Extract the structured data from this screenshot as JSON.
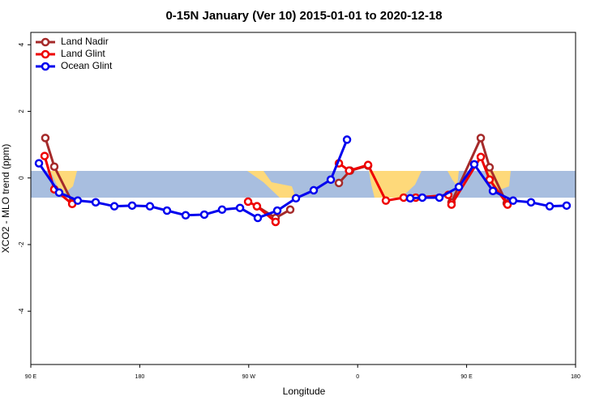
{
  "chart_data": {
    "type": "line",
    "title": "0-15N January (Ver 10)   2015-01-01 to 2020-12-18",
    "xlabel": "Longitude",
    "ylabel": "XCO2 - MLO trend (ppm)",
    "xlim": [
      90,
      540
    ],
    "xticks": [
      {
        "value": 90,
        "label": "90 E"
      },
      {
        "value": 180,
        "label": "180"
      },
      {
        "value": 270,
        "label": "90 W"
      },
      {
        "value": 360,
        "label": "0"
      },
      {
        "value": 450,
        "label": "90 E"
      },
      {
        "value": 540,
        "label": "180"
      }
    ],
    "ylim": [
      -5.6,
      4.37
    ],
    "yticks": [
      -4,
      -2,
      0,
      2,
      4
    ],
    "legend": "top-left",
    "series": [
      {
        "name": "Land Nadir",
        "color": "#a52a2a",
        "x": [
          102,
          109.4,
          124.2,
          200,
          276.8,
          292.2,
          304.3,
          325,
          344.5,
          353.8,
          368.6,
          400,
          437.5,
          461.7,
          469,
          483.1
        ],
        "values": [
          1.2,
          0.34,
          -0.73,
          null,
          -0.85,
          -1.2,
          -0.95,
          null,
          -0.15,
          0.22,
          0.37,
          null,
          -0.73,
          1.2,
          0.32,
          -0.76
        ]
      },
      {
        "name": "Land Glint",
        "color": "#ee0000",
        "x": [
          101.4,
          109.4,
          124.2,
          200,
          269.5,
          276.8,
          292.2,
          325,
          344.5,
          352.9,
          368.6,
          383.3,
          398,
          408,
          434.9,
          437.5,
          461.7,
          469,
          483.8
        ],
        "values": [
          0.66,
          -0.34,
          -0.78,
          null,
          -0.71,
          -0.85,
          -1.32,
          null,
          0.44,
          0.22,
          0.39,
          -0.68,
          -0.59,
          -0.59,
          -0.51,
          -0.8,
          0.63,
          -0.05,
          -0.8
        ]
      },
      {
        "name": "Ocean Glint",
        "color": "#0000ee",
        "x": [
          96.7,
          113.4,
          128.8,
          143.6,
          159,
          173.7,
          188.4,
          202.5,
          217.9,
          233.3,
          248,
          262.8,
          277.5,
          293.6,
          309,
          323.7,
          337.8,
          351.2,
          375,
          403.4,
          413.4,
          427.5,
          443.6,
          456.3,
          471.7,
          488.4,
          503.2,
          518.6,
          532.6
        ],
        "values": [
          0.44,
          -0.44,
          -0.68,
          -0.73,
          -0.85,
          -0.83,
          -0.85,
          -0.98,
          -1.12,
          -1.1,
          -0.95,
          -0.9,
          -1.2,
          -0.98,
          -0.61,
          -0.37,
          -0.05,
          1.15,
          null,
          -0.61,
          -0.59,
          -0.59,
          -0.27,
          0.41,
          -0.39,
          -0.68,
          -0.73,
          -0.85,
          -0.83
        ]
      }
    ]
  }
}
